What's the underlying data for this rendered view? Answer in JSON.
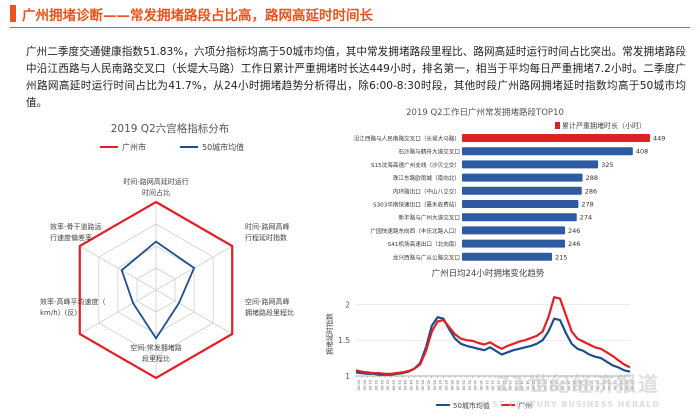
{
  "header": {
    "title": "广州拥堵诊断——常发拥堵路段占比高，路网高延时时间长"
  },
  "intro": {
    "paragraph": "广州二季度交通健康指数51.83%，六项分指标均高于50城市均值，其中常发拥堵路段里程比、路网高延时运行时间占比突出。常发拥堵路段中沿江西路与人民南路交叉口（长堤大马路）工作日累计严重拥堵时长达449小时，排名第一，相当于平均每日严重拥堵7.2小时。二季度广州路网高延时运行时间占比为41.7%，从24小时拥堵趋势分析得出，除6:00-8:30时段，其他时段广州路网拥堵延时指数均高于50城市均值。"
  },
  "watermark": {
    "main": "21世纪经济报道",
    "sub": "21ST CENTURY BUSINESS HERALD"
  },
  "colors": {
    "accent": "#e8541e",
    "guangzhou": "#e01f26",
    "avg": "#1f4e8c",
    "bar": "#2d5aa0",
    "bar_highlight": "#e01f26"
  },
  "chart_data": [
    {
      "type": "radar",
      "title": "2019 Q2六宫格指标分布",
      "legend": [
        "广州市",
        "50城市均值"
      ],
      "axes": [
        "时间-路网高延时运行时间占比",
        "时间-路网高峰行程延时指数",
        "空间-路网高峰拥堵路段里程比",
        "空间-常发拥堵路段里程比",
        "效率-高峰平均速度（km/h）(反)",
        "效率-骨干道路运行速度偏差率"
      ],
      "series": [
        {
          "name": "广州市",
          "values": [
            1.0,
            1.0,
            1.0,
            1.0,
            1.0,
            1.0
          ]
        },
        {
          "name": "50城市均值",
          "values": [
            0.55,
            0.5,
            0.3,
            0.55,
            0.3,
            0.45
          ]
        }
      ]
    },
    {
      "type": "bar",
      "orientation": "horizontal",
      "title": "2019 Q2工作日广州常发拥堵路段TOP10",
      "legend": [
        "累计严重拥堵时长（小时）"
      ],
      "categories": [
        "沿江西路与人民南路交叉口（长堤大马路）",
        "石沙路与鹤舟大道交叉口",
        "S15沈海高速广州支线（沙贝立交）",
        "珠江东路欧雨城（南向北）",
        "内环路出口（中山八立交）",
        "S303华南快速出口（嘉禾收费站）",
        "新丰路与广州大道交叉口",
        "广园快速路东向西（丰乐北路入口）",
        "S41机场高速出口（北向南）",
        "龙兴西路与广从公路交叉口"
      ],
      "values": [
        449,
        408,
        325,
        288,
        286,
        278,
        274,
        246,
        246,
        215
      ],
      "xlim": [
        0,
        449
      ]
    },
    {
      "type": "line",
      "title": "广州日均24小时拥堵变化趋势",
      "ylabel": "拥堵延时指数",
      "ylim": [
        1,
        2.2
      ],
      "yticks": [
        1,
        1.5,
        2
      ],
      "ytick_labels": [
        "1",
        "1.5",
        "2"
      ],
      "x_hours": [
        0,
        0.5,
        1,
        1.5,
        2,
        2.5,
        3,
        3.5,
        4,
        4.5,
        5,
        5.5,
        6,
        6.5,
        7,
        7.5,
        8,
        8.5,
        9,
        9.5,
        10,
        10.5,
        11,
        11.5,
        12,
        12.5,
        13,
        13.5,
        14,
        14.5,
        15,
        15.5,
        16,
        16.5,
        17,
        17.5,
        18,
        18.5,
        19,
        19.5,
        20,
        20.5,
        21,
        21.5,
        22,
        22.5,
        23,
        23.5
      ],
      "series": [
        {
          "name": "50城市均值",
          "values": [
            1.05,
            1.04,
            1.03,
            1.03,
            1.02,
            1.02,
            1.02,
            1.03,
            1.04,
            1.06,
            1.1,
            1.18,
            1.4,
            1.7,
            1.82,
            1.8,
            1.65,
            1.52,
            1.45,
            1.42,
            1.4,
            1.38,
            1.36,
            1.4,
            1.35,
            1.3,
            1.33,
            1.36,
            1.38,
            1.4,
            1.42,
            1.45,
            1.5,
            1.62,
            1.8,
            1.78,
            1.6,
            1.45,
            1.38,
            1.35,
            1.3,
            1.27,
            1.25,
            1.2,
            1.15,
            1.12,
            1.08,
            1.06
          ]
        },
        {
          "name": "广州",
          "values": [
            1.08,
            1.06,
            1.05,
            1.04,
            1.04,
            1.03,
            1.03,
            1.04,
            1.05,
            1.07,
            1.1,
            1.16,
            1.35,
            1.62,
            1.76,
            1.78,
            1.68,
            1.58,
            1.52,
            1.5,
            1.49,
            1.46,
            1.44,
            1.47,
            1.42,
            1.38,
            1.42,
            1.45,
            1.48,
            1.5,
            1.53,
            1.56,
            1.62,
            1.82,
            2.1,
            2.08,
            1.85,
            1.62,
            1.52,
            1.48,
            1.44,
            1.4,
            1.38,
            1.33,
            1.28,
            1.22,
            1.16,
            1.12
          ]
        }
      ]
    }
  ]
}
